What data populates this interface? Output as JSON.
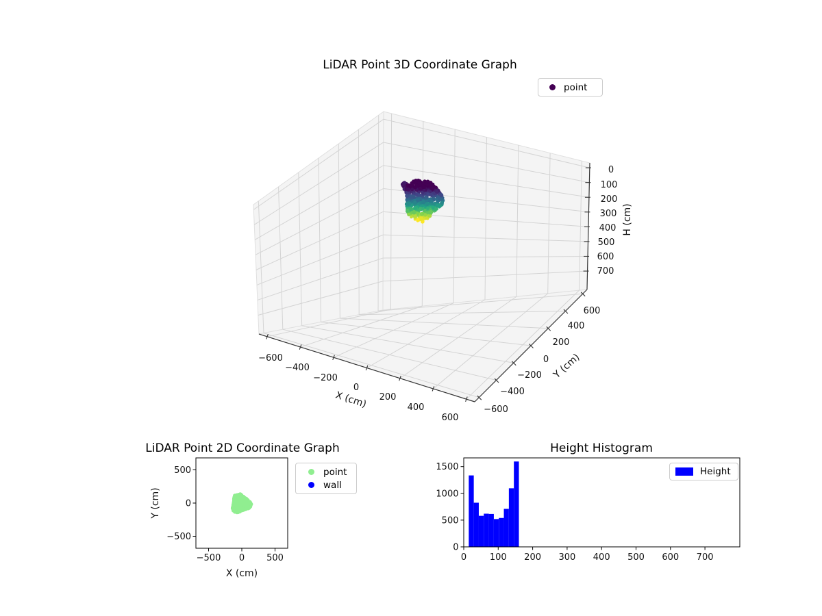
{
  "figure": {
    "background": "#ffffff"
  },
  "plot3d": {
    "title": "LiDAR Point 3D Coordinate Graph",
    "xlabel": "X (cm)",
    "ylabel": "Y (cm)",
    "zlabel": "H (cm)",
    "xticks": [
      "−600",
      "−400",
      "−200",
      "0",
      "200",
      "400",
      "600"
    ],
    "yticks": [
      "600",
      "400",
      "200",
      "0",
      "−200",
      "−400",
      "−600"
    ],
    "zticks": [
      "0",
      "100",
      "200",
      "300",
      "400",
      "500",
      "600",
      "700"
    ],
    "legend": {
      "items": [
        {
          "label": "point",
          "color": "#440154"
        }
      ]
    }
  },
  "plot2d": {
    "title": "LiDAR Point 2D Coordinate Graph",
    "xlabel": "X (cm)",
    "ylabel": "Y (cm)",
    "xticks": [
      "−500",
      "0",
      "500"
    ],
    "yticks": [
      "500",
      "0",
      "−500"
    ],
    "legend": {
      "items": [
        {
          "label": "point",
          "color": "#90ee90"
        },
        {
          "label": "wall",
          "color": "#0000ff"
        }
      ]
    }
  },
  "hist": {
    "title": "Height Histogram",
    "xticks": [
      "0",
      "100",
      "200",
      "300",
      "400",
      "500",
      "600",
      "700"
    ],
    "yticks": [
      "0",
      "500",
      "1000",
      "1500"
    ],
    "legend": {
      "items": [
        {
          "label": "Height",
          "color": "#0000ff"
        }
      ]
    }
  },
  "chart_data": [
    {
      "type": "scatter",
      "subtype": "3d",
      "title": "LiDAR Point 3D Coordinate Graph",
      "xlabel": "X (cm)",
      "ylabel": "Y (cm)",
      "zlabel": "H (cm)",
      "xlim": [
        -650,
        650
      ],
      "ylim": [
        -650,
        650
      ],
      "h_ticks": [
        0,
        100,
        200,
        300,
        400,
        500,
        600,
        700
      ],
      "h_axis_inverted": true,
      "grid": true,
      "legend_position": "upper right",
      "series": [
        {
          "name": "point",
          "colormap": "viridis",
          "description": "dense ellipsoidal point cluster centered near x≈0, y≈0, colored dark purple at low H to yellow-green at high H",
          "center": {
            "x": -20,
            "y": 0
          },
          "radius_cm": 130,
          "h_range_cm": [
            15,
            160
          ]
        }
      ]
    },
    {
      "type": "scatter",
      "subtype": "2d",
      "title": "LiDAR Point 2D Coordinate Graph",
      "xlabel": "X (cm)",
      "ylabel": "Y (cm)",
      "xlim": [
        -685,
        685
      ],
      "ylim": [
        -685,
        685
      ],
      "xticks": [
        -500,
        0,
        500
      ],
      "yticks": [
        -500,
        0,
        500
      ],
      "legend_position": "outside upper right",
      "series": [
        {
          "name": "point",
          "color": "#90ee90",
          "center": {
            "x": -15,
            "y": -8
          },
          "radius_cm": 140
        },
        {
          "name": "wall",
          "color": "#0000ff",
          "visible_points": 0
        }
      ]
    },
    {
      "type": "histogram",
      "title": "Height Histogram",
      "xlabel": "",
      "ylabel": "",
      "xlim": [
        0,
        800
      ],
      "ylim": [
        0,
        1663
      ],
      "xticks": [
        0,
        100,
        200,
        300,
        400,
        500,
        600,
        700
      ],
      "yticks": [
        0,
        500,
        1000,
        1500
      ],
      "legend_position": "upper right",
      "series": [
        {
          "name": "Height",
          "color": "#0000ff",
          "bin_start": 14.55,
          "bin_width": 14.55,
          "counts": [
            1335,
            825,
            580,
            620,
            615,
            520,
            540,
            710,
            1095,
            1595
          ]
        }
      ]
    }
  ]
}
